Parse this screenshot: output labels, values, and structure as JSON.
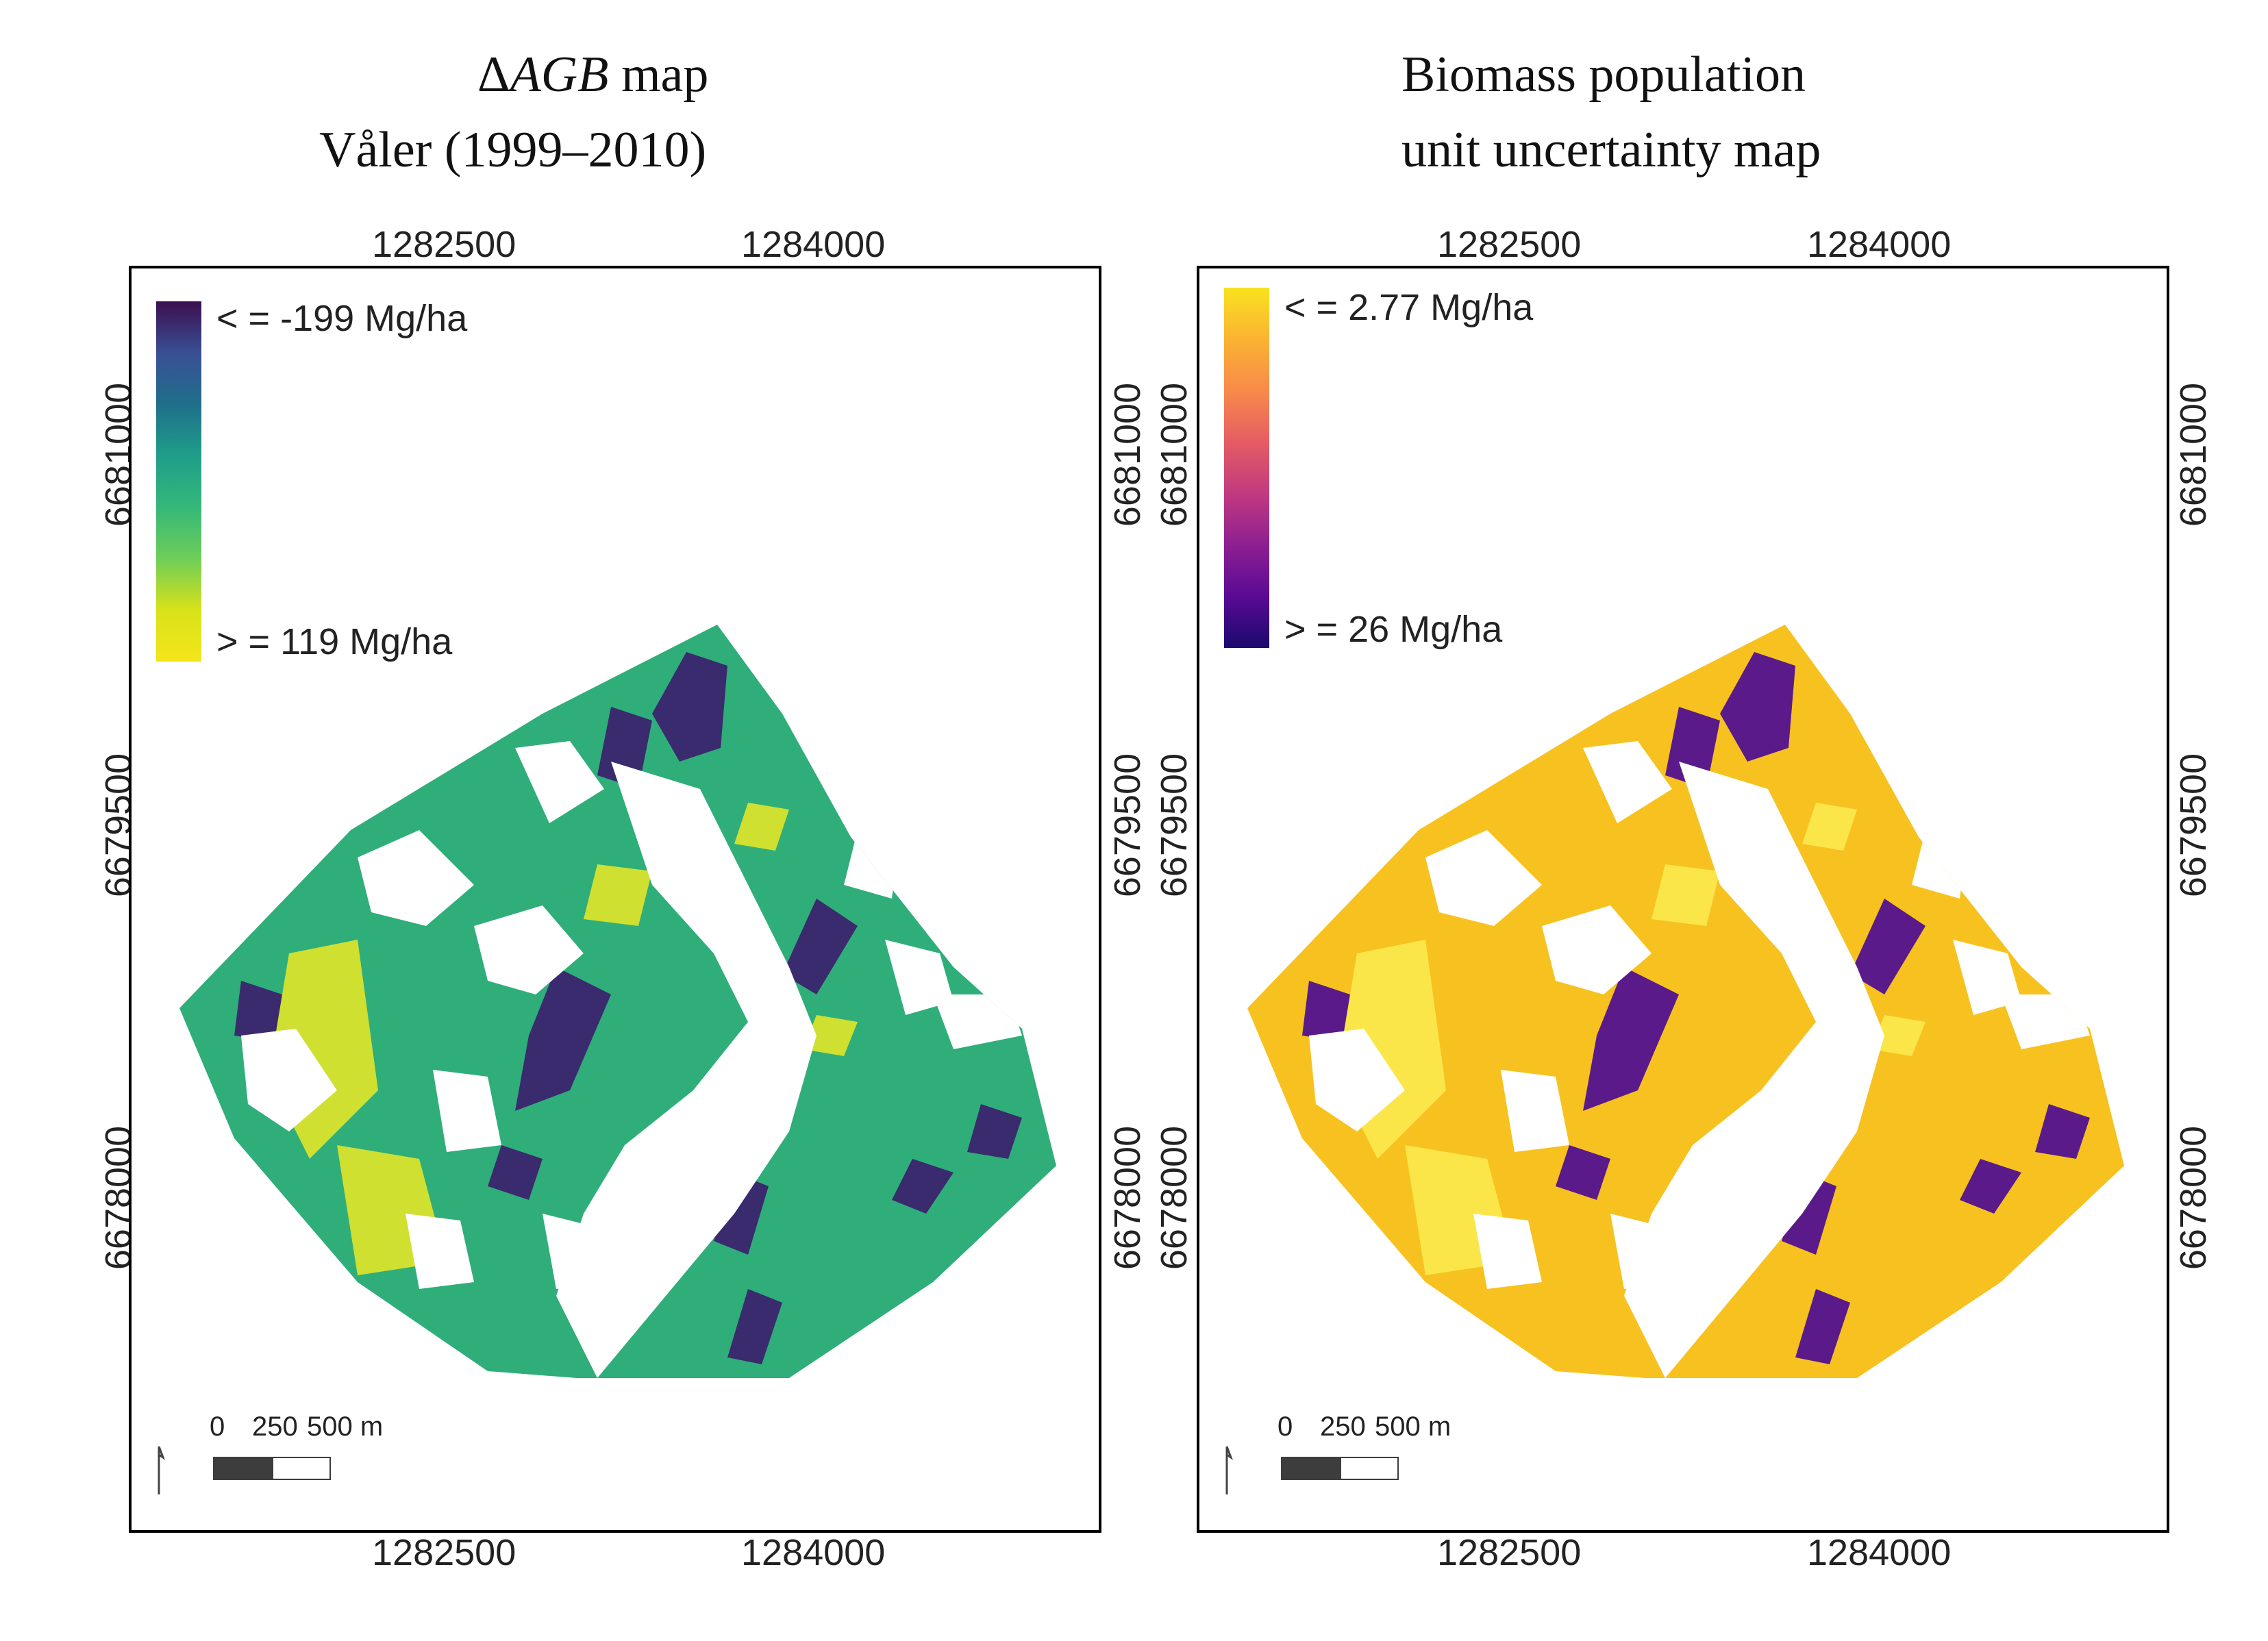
{
  "titles": {
    "left": {
      "delta": "Δ",
      "italic": "AGB",
      "rest": " map",
      "line2": "Våler (1999–2010)"
    },
    "right": {
      "line1": "Biomass population",
      "line2": "unit uncertainty map"
    }
  },
  "left_map": {
    "legend_top": "< = -199 Mg/ha",
    "legend_bottom": "> = 119 Mg/ha",
    "colors": [
      "#3b0f4f",
      "#3a4f94",
      "#1f6f8b",
      "#1f9e89",
      "#35b779",
      "#6ece58",
      "#d8e219",
      "#f5e51b"
    ],
    "base_color": "#2fae7a",
    "dark_color": "#3a2a6e",
    "light_color": "#cfe030",
    "scale": {
      "zero": "0",
      "mid": "250",
      "end": "500 m"
    }
  },
  "right_map": {
    "legend_top": "< = 2.77 Mg/ha",
    "legend_bottom": "> = 26 Mg/ha",
    "colors": [
      "#f9e21f",
      "#fbb332",
      "#f88a4a",
      "#e55c64",
      "#c13a7f",
      "#8e1f92",
      "#5a0a94",
      "#1a0a6e"
    ],
    "base_color": "#f7c21f",
    "dark_color": "#5a1a8a",
    "light_color": "#fbe64a",
    "scale": {
      "zero": "0",
      "mid": "250",
      "end": "500 m"
    }
  },
  "axes": {
    "x_ticks": [
      "1282500",
      "1284000"
    ],
    "y_ticks": [
      "6681000",
      "6679500",
      "6678000"
    ]
  }
}
